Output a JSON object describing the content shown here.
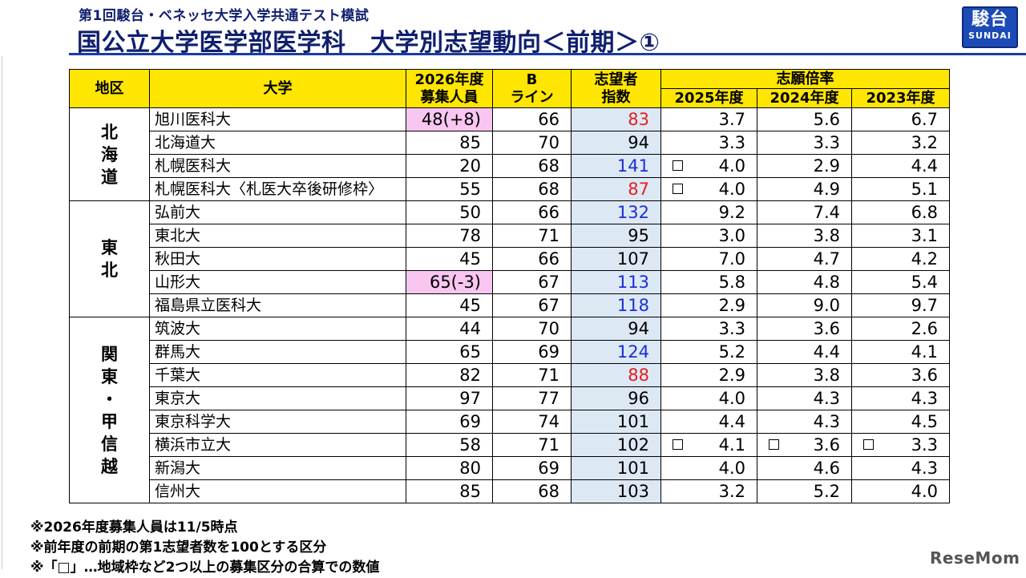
{
  "header": {
    "subtitle": "第1回駿台・ベネッセ大学入学共通テスト模試",
    "title": "国公立大学医学部医学科　大学別志望動向＜前期＞①"
  },
  "logo": {
    "kanji": "駿台",
    "roman": "SUNDAI"
  },
  "table": {
    "headers": {
      "region": "地区",
      "university": "大学",
      "capacity_line1": "2026年度",
      "capacity_line2": "募集人員",
      "bline_line1": "B",
      "bline_line2": "ライン",
      "index_line1": "志望者",
      "index_line2": "指数",
      "ratio_group": "志願倍率",
      "ratio_2025": "2025年度",
      "ratio_2024": "2024年度",
      "ratio_2023": "2023年度"
    },
    "regions": [
      {
        "name_chars": [
          "北",
          "海",
          "道"
        ]
      },
      {
        "name_chars": [
          "東",
          "北"
        ]
      },
      {
        "name_chars": [
          "関",
          "東",
          "・",
          "甲",
          "信",
          "越"
        ]
      }
    ],
    "rows": [
      {
        "univ": "旭川医科大",
        "capacity": "48(+8)",
        "bline": "66",
        "index": "83",
        "r2025": "3.7",
        "r2024": "5.6",
        "r2023": "6.7"
      },
      {
        "univ": "北海道大",
        "capacity": "85",
        "bline": "70",
        "index": "94",
        "r2025": "3.3",
        "r2024": "3.3",
        "r2023": "3.2"
      },
      {
        "univ": "札幌医科大",
        "capacity": "20",
        "bline": "68",
        "index": "141",
        "r2025": "4.0",
        "r2024": "2.9",
        "r2023": "4.4"
      },
      {
        "univ": "札幌医科大〈札医大卒後研修枠〉",
        "capacity": "55",
        "bline": "68",
        "index": "87",
        "r2025": "4.0",
        "r2024": "4.9",
        "r2023": "5.1"
      },
      {
        "univ": "弘前大",
        "capacity": "50",
        "bline": "66",
        "index": "132",
        "r2025": "9.2",
        "r2024": "7.4",
        "r2023": "6.8"
      },
      {
        "univ": "東北大",
        "capacity": "78",
        "bline": "71",
        "index": "95",
        "r2025": "3.0",
        "r2024": "3.8",
        "r2023": "3.1"
      },
      {
        "univ": "秋田大",
        "capacity": "45",
        "bline": "66",
        "index": "107",
        "r2025": "7.0",
        "r2024": "4.7",
        "r2023": "4.2"
      },
      {
        "univ": "山形大",
        "capacity": "65(-3)",
        "bline": "67",
        "index": "113",
        "r2025": "5.8",
        "r2024": "4.8",
        "r2023": "5.4"
      },
      {
        "univ": "福島県立医科大",
        "capacity": "45",
        "bline": "67",
        "index": "118",
        "r2025": "2.9",
        "r2024": "9.0",
        "r2023": "9.7"
      },
      {
        "univ": "筑波大",
        "capacity": "44",
        "bline": "70",
        "index": "94",
        "r2025": "3.3",
        "r2024": "3.6",
        "r2023": "2.6"
      },
      {
        "univ": "群馬大",
        "capacity": "65",
        "bline": "69",
        "index": "124",
        "r2025": "5.2",
        "r2024": "4.4",
        "r2023": "4.1"
      },
      {
        "univ": "千葉大",
        "capacity": "82",
        "bline": "71",
        "index": "88",
        "r2025": "2.9",
        "r2024": "3.8",
        "r2023": "3.6"
      },
      {
        "univ": "東京大",
        "capacity": "97",
        "bline": "77",
        "index": "96",
        "r2025": "4.0",
        "r2024": "4.3",
        "r2023": "4.3"
      },
      {
        "univ": "東京科学大",
        "capacity": "69",
        "bline": "74",
        "index": "101",
        "r2025": "4.4",
        "r2024": "4.3",
        "r2023": "4.5"
      },
      {
        "univ": "横浜市立大",
        "capacity": "58",
        "bline": "71",
        "index": "102",
        "r2025": "4.1",
        "r2024": "3.6",
        "r2023": "3.3"
      },
      {
        "univ": "新潟大",
        "capacity": "80",
        "bline": "69",
        "index": "101",
        "r2025": "4.0",
        "r2024": "4.6",
        "r2023": "4.3"
      },
      {
        "univ": "信州大",
        "capacity": "85",
        "bline": "68",
        "index": "103",
        "r2025": "3.2",
        "r2024": "5.2",
        "r2023": "4.0"
      }
    ]
  },
  "colors": {
    "header_bg": "#ffe600",
    "capacity_highlight": "#f8c6f0",
    "index_bg": "#dde8f5",
    "index_blue": "#1a2fd6",
    "index_red": "#e0201e",
    "title_color": "#0f1f6e"
  },
  "notes": [
    "※2026年度募集人員は11/5時点",
    "※前年度の前期の第1志望者数を100とする区分",
    "※「□」…地域枠など2つ以上の募集区分の合算での数値"
  ],
  "watermark": "ReseMom"
}
